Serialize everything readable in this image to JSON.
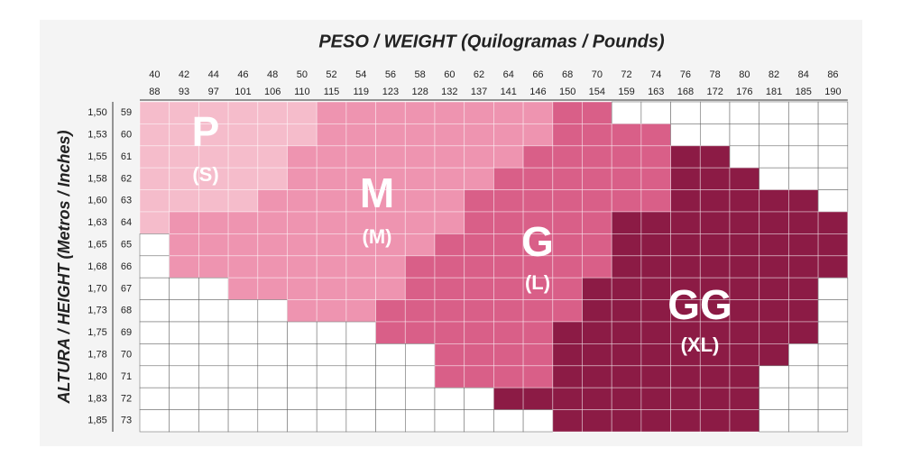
{
  "title": "PESO / WEIGHT (Quilogramas / Pounds)",
  "side_title": "ALTURA / HEIGHT (Metros / Inches)",
  "weights_kg": [
    "40",
    "42",
    "44",
    "46",
    "48",
    "50",
    "52",
    "54",
    "56",
    "58",
    "60",
    "62",
    "64",
    "66",
    "68",
    "70",
    "72",
    "74",
    "76",
    "78",
    "80",
    "82",
    "84",
    "86"
  ],
  "weights_lb": [
    "88",
    "93",
    "97",
    "101",
    "106",
    "110",
    "115",
    "119",
    "123",
    "128",
    "132",
    "137",
    "141",
    "146",
    "150",
    "154",
    "159",
    "163",
    "168",
    "172",
    "176",
    "181",
    "185",
    "190"
  ],
  "heights_m": [
    "1,50",
    "1,53",
    "1,55",
    "1,58",
    "1,60",
    "1,63",
    "1,65",
    "1,68",
    "1,70",
    "1,73",
    "1,75",
    "1,78",
    "1,80",
    "1,83",
    "1,85"
  ],
  "heights_in": [
    "59",
    "60",
    "61",
    "62",
    "63",
    "64",
    "65",
    "66",
    "67",
    "68",
    "69",
    "70",
    "71",
    "72",
    "73"
  ],
  "sizes": [
    {
      "code": "P",
      "label": "(S)",
      "color": "#f5bccb"
    },
    {
      "code": "M",
      "label": "(M)",
      "color": "#ee94b0"
    },
    {
      "code": "G",
      "label": "(L)",
      "color": "#d95f88"
    },
    {
      "code": "GG",
      "label": "(XL)",
      "color": "#8c1b45"
    }
  ],
  "grid": [
    [
      "P",
      "P",
      "P",
      "P",
      "P",
      "P",
      "M",
      "M",
      "M",
      "M",
      "M",
      "M",
      "M",
      "M",
      "G",
      "G",
      null,
      null,
      null,
      null,
      null,
      null,
      null,
      null
    ],
    [
      "P",
      "P",
      "P",
      "P",
      "P",
      "P",
      "M",
      "M",
      "M",
      "M",
      "M",
      "M",
      "M",
      "M",
      "G",
      "G",
      "G",
      "G",
      null,
      null,
      null,
      null,
      null,
      null
    ],
    [
      "P",
      "P",
      "P",
      "P",
      "P",
      "M",
      "M",
      "M",
      "M",
      "M",
      "M",
      "M",
      "M",
      "G",
      "G",
      "G",
      "G",
      "G",
      "GG",
      "GG",
      null,
      null,
      null,
      null
    ],
    [
      "P",
      "P",
      "P",
      "P",
      "P",
      "M",
      "M",
      "M",
      "M",
      "M",
      "M",
      "M",
      "G",
      "G",
      "G",
      "G",
      "G",
      "G",
      "GG",
      "GG",
      "GG",
      null,
      null,
      null
    ],
    [
      "P",
      "P",
      "P",
      "P",
      "M",
      "M",
      "M",
      "M",
      "M",
      "M",
      "M",
      "G",
      "G",
      "G",
      "G",
      "G",
      "G",
      "G",
      "GG",
      "GG",
      "GG",
      "GG",
      "GG",
      null
    ],
    [
      "P",
      "M",
      "M",
      "M",
      "M",
      "M",
      "M",
      "M",
      "M",
      "M",
      "M",
      "G",
      "G",
      "G",
      "G",
      "G",
      "GG",
      "GG",
      "GG",
      "GG",
      "GG",
      "GG",
      "GG",
      "GG"
    ],
    [
      null,
      "M",
      "M",
      "M",
      "M",
      "M",
      "M",
      "M",
      "M",
      "M",
      "G",
      "G",
      "G",
      "G",
      "G",
      "G",
      "GG",
      "GG",
      "GG",
      "GG",
      "GG",
      "GG",
      "GG",
      "GG"
    ],
    [
      null,
      "M",
      "M",
      "M",
      "M",
      "M",
      "M",
      "M",
      "M",
      "G",
      "G",
      "G",
      "G",
      "G",
      "G",
      "G",
      "GG",
      "GG",
      "GG",
      "GG",
      "GG",
      "GG",
      "GG",
      "GG"
    ],
    [
      null,
      null,
      null,
      "M",
      "M",
      "M",
      "M",
      "M",
      "M",
      "G",
      "G",
      "G",
      "G",
      "G",
      "G",
      "GG",
      "GG",
      "GG",
      "GG",
      "GG",
      "GG",
      "GG",
      "GG",
      null
    ],
    [
      null,
      null,
      null,
      null,
      null,
      "M",
      "M",
      "M",
      "G",
      "G",
      "G",
      "G",
      "G",
      "G",
      "G",
      "GG",
      "GG",
      "GG",
      "GG",
      "GG",
      "GG",
      "GG",
      "GG",
      null
    ],
    [
      null,
      null,
      null,
      null,
      null,
      null,
      null,
      null,
      "G",
      "G",
      "G",
      "G",
      "G",
      "G",
      "GG",
      "GG",
      "GG",
      "GG",
      "GG",
      "GG",
      "GG",
      "GG",
      "GG",
      null
    ],
    [
      null,
      null,
      null,
      null,
      null,
      null,
      null,
      null,
      null,
      null,
      "G",
      "G",
      "G",
      "G",
      "GG",
      "GG",
      "GG",
      "GG",
      "GG",
      "GG",
      "GG",
      "GG",
      null,
      null
    ],
    [
      null,
      null,
      null,
      null,
      null,
      null,
      null,
      null,
      null,
      null,
      "G",
      "G",
      "G",
      "G",
      "GG",
      "GG",
      "GG",
      "GG",
      "GG",
      "GG",
      "GG",
      null,
      null,
      null
    ],
    [
      null,
      null,
      null,
      null,
      null,
      null,
      null,
      null,
      null,
      null,
      null,
      null,
      "GG",
      "GG",
      "GG",
      "GG",
      "GG",
      "GG",
      "GG",
      "GG",
      "GG",
      null,
      null,
      null
    ],
    [
      null,
      null,
      null,
      null,
      null,
      null,
      null,
      null,
      null,
      null,
      null,
      null,
      null,
      null,
      "GG",
      "GG",
      "GG",
      "GG",
      "GG",
      "GG",
      "GG",
      null,
      null,
      null
    ]
  ]
}
